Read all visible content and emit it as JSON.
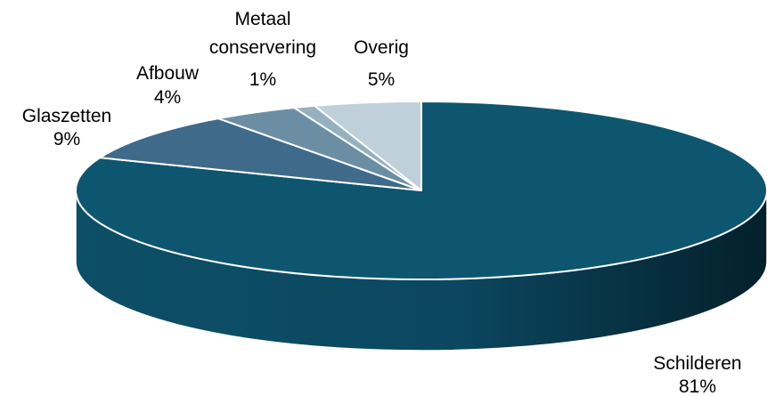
{
  "chart_data": {
    "type": "pie",
    "style": "3d",
    "title": "",
    "slices": [
      {
        "label_lines": [
          "Schilderen"
        ],
        "value": 81,
        "value_label": "81%",
        "color": "#0E5670"
      },
      {
        "label_lines": [
          "Glaszetten"
        ],
        "value": 9,
        "value_label": "9%",
        "color": "#3F6A89"
      },
      {
        "label_lines": [
          "Afbouw"
        ],
        "value": 4,
        "value_label": "4%",
        "color": "#6C8EA5"
      },
      {
        "label_lines": [
          "Metaal",
          "conservering"
        ],
        "value": 1,
        "value_label": "1%",
        "color": "#95B0C1"
      },
      {
        "label_lines": [
          "Overig"
        ],
        "value": 5,
        "value_label": "5%",
        "color": "#BFD0DA"
      }
    ]
  }
}
